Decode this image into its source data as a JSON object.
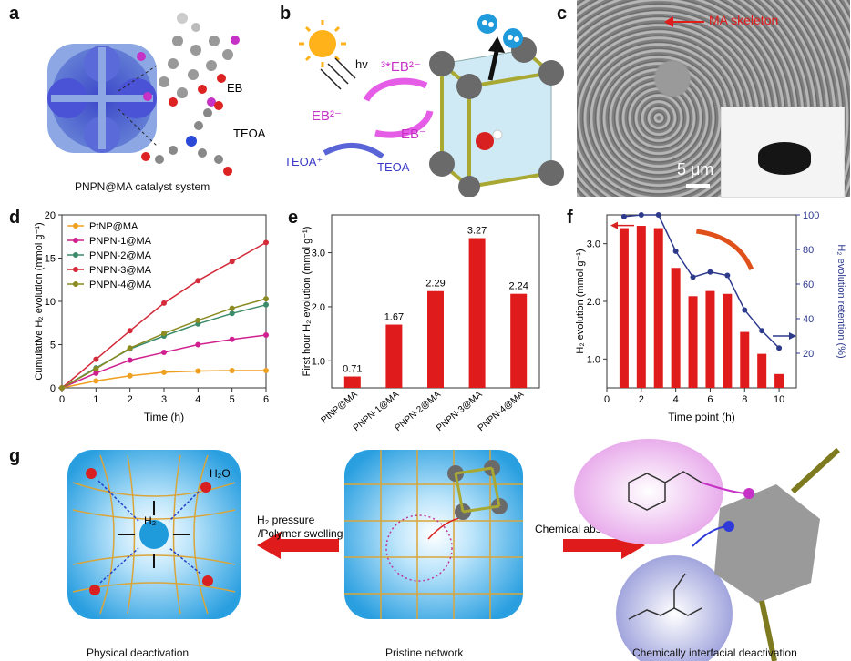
{
  "panels": {
    "a": {
      "letter": "a",
      "eb_label": "EB",
      "teoa_label": "TEOA",
      "caption": "PNPN@MA catalyst system"
    },
    "b": {
      "letter": "b",
      "hv": "hv",
      "eb_top": "³*EB²⁻",
      "eb_left": "EB²⁻",
      "eb_right": "EB⁻",
      "teoa_plus": "TEOA⁺",
      "teoa": "TEOA"
    },
    "c": {
      "letter": "c",
      "annotation": "MA skeleton",
      "scale_bar": "5 μm"
    },
    "d": {
      "letter": "d"
    },
    "e": {
      "letter": "e"
    },
    "f": {
      "letter": "f"
    },
    "g": {
      "letter": "g",
      "h2o": "H₂O",
      "h2": "H₂",
      "arrow_left_label_1": "H₂ pressure",
      "arrow_left_label_2": "/Polymer swelling",
      "arrow_right_label": "Chemical absorption",
      "caption_left": "Physical deactivation",
      "caption_mid": "Pristine network",
      "caption_right": "Chemically interfacial deactivation"
    }
  },
  "chart_data": [
    {
      "panel": "d",
      "type": "line",
      "xlabel": "Time (h)",
      "ylabel": "Cumulative H₂ evolution (mmol g⁻¹)",
      "xlim": [
        0,
        6
      ],
      "ylim": [
        0,
        20
      ],
      "xticks": [
        "0",
        "1",
        "2",
        "3",
        "4",
        "5",
        "6"
      ],
      "yticks": [
        "0",
        "5",
        "10",
        "15",
        "20"
      ],
      "legend_position": "top-left",
      "x": [
        0,
        1,
        2,
        3,
        4,
        5,
        6
      ],
      "series": [
        {
          "name": "PtNP@MA",
          "color": "#f0a020",
          "values": [
            0,
            0.8,
            1.4,
            1.8,
            1.95,
            2.0,
            2.0
          ]
        },
        {
          "name": "PNPN-1@MA",
          "color": "#d0208f",
          "values": [
            0,
            1.7,
            3.2,
            4.1,
            5.0,
            5.6,
            6.1
          ]
        },
        {
          "name": "PNPN-2@MA",
          "color": "#3b8b69",
          "values": [
            0,
            2.3,
            4.5,
            6.0,
            7.4,
            8.6,
            9.6
          ]
        },
        {
          "name": "PNPN-3@MA",
          "color": "#d42a3a",
          "values": [
            0,
            3.3,
            6.6,
            9.8,
            12.4,
            14.6,
            16.8
          ]
        },
        {
          "name": "PNPN-4@MA",
          "color": "#8b8b22",
          "values": [
            0,
            2.2,
            4.6,
            6.3,
            7.8,
            9.2,
            10.3
          ]
        }
      ]
    },
    {
      "panel": "e",
      "type": "bar",
      "ylabel": "First hour H₂ evolution (mmol g⁻¹)",
      "ylim": [
        0.5,
        3.7
      ],
      "yticks": [
        "1.0",
        "2.0",
        "3.0"
      ],
      "categories": [
        "PtNP@MA",
        "PNPN-1@MA",
        "PNPN-2@MA",
        "PNPN-3@MA",
        "PNPN-4@MA"
      ],
      "values": [
        0.71,
        1.67,
        2.29,
        3.27,
        2.24
      ],
      "data_labels": [
        "0.71",
        "1.67",
        "2.29",
        "3.27",
        "2.24"
      ],
      "color": "#e01b1b"
    },
    {
      "panel": "f",
      "type": "bar",
      "xlabel": "Time point (h)",
      "ylabel": "H₂ evolution (mmol g⁻¹)",
      "ylabel_right": "H₂ evolution retention (%)",
      "xlim": [
        0,
        11
      ],
      "ylim": [
        0.5,
        3.5
      ],
      "y2lim": [
        0,
        100
      ],
      "xticks": [
        "0",
        "2",
        "4",
        "6",
        "8",
        "10"
      ],
      "yticks": [
        "1.0",
        "2.0",
        "3.0"
      ],
      "y2ticks": [
        "20",
        "40",
        "60",
        "80",
        "100"
      ],
      "x": [
        1,
        2,
        3,
        4,
        5,
        6,
        7,
        8,
        9,
        10
      ],
      "values": [
        3.27,
        3.31,
        3.27,
        2.58,
        2.09,
        2.18,
        2.13,
        1.47,
        1.09,
        0.74
      ],
      "bar_color": "#e01b1b",
      "retention": [
        99,
        100,
        100,
        79,
        64,
        67,
        65,
        45,
        33,
        23
      ],
      "line_color": "#2d3a8c"
    }
  ]
}
